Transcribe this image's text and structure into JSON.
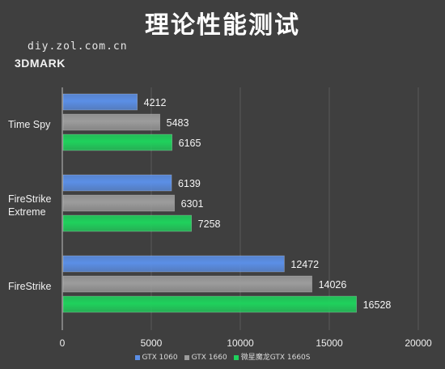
{
  "header": {
    "title": "理论性能测试",
    "source": "diy.zol.com.cn",
    "subtitle": "3DMARK"
  },
  "colors": {
    "background": "#3f3f3f",
    "gridline": "#5a5a5a",
    "text": "#ffffff",
    "series": [
      "#5b8fe6",
      "#9c9c9c",
      "#1fd15c"
    ]
  },
  "chart_data": {
    "type": "bar",
    "orientation": "horizontal",
    "categories": [
      "Time Spy",
      "FireStrike Extreme",
      "FireStrike"
    ],
    "category_labels": [
      [
        "Time Spy"
      ],
      [
        "FireStrike",
        "Extreme"
      ],
      [
        "FireStrike"
      ]
    ],
    "series": [
      {
        "name": "GTX 1060",
        "values": [
          4212,
          6139,
          12472
        ]
      },
      {
        "name": "GTX 1660",
        "values": [
          5483,
          6301,
          14026
        ]
      },
      {
        "name": "微星魔龙GTX 1660S",
        "values": [
          6165,
          7258,
          16528
        ]
      }
    ],
    "xlim": [
      0,
      20000
    ],
    "xticks": [
      0,
      5000,
      10000,
      15000,
      20000
    ],
    "grid": true,
    "data_labels": true,
    "legend_position": "bottom"
  }
}
